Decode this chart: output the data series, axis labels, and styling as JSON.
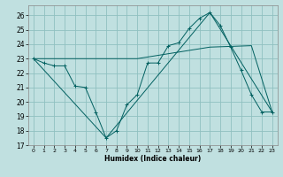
{
  "xlabel": "Humidex (Indice chaleur)",
  "bg_color": "#c0e0e0",
  "grid_color": "#90c0c0",
  "line_color": "#006060",
  "xlim": [
    -0.5,
    23.5
  ],
  "ylim": [
    17,
    26.7
  ],
  "yticks": [
    17,
    18,
    19,
    20,
    21,
    22,
    23,
    24,
    25,
    26
  ],
  "xticks": [
    0,
    1,
    2,
    3,
    4,
    5,
    6,
    7,
    8,
    9,
    10,
    11,
    12,
    13,
    14,
    15,
    16,
    17,
    18,
    19,
    20,
    21,
    22,
    23
  ],
  "line1_x": [
    0,
    1,
    2,
    3,
    4,
    5,
    6,
    7,
    8,
    9,
    10,
    11,
    12,
    13,
    14,
    15,
    16,
    17,
    18,
    19,
    20,
    21,
    22,
    23
  ],
  "line1_y": [
    23,
    22.7,
    22.5,
    22.5,
    21.1,
    21.0,
    19.3,
    17.5,
    18.0,
    19.8,
    20.5,
    22.7,
    22.7,
    23.9,
    24.1,
    25.1,
    25.8,
    26.2,
    25.3,
    23.8,
    22.2,
    20.5,
    19.3,
    19.3
  ],
  "line2_x": [
    0,
    7,
    17,
    23
  ],
  "line2_y": [
    23,
    17.5,
    26.2,
    19.3
  ],
  "line3_x": [
    0,
    10,
    17,
    21,
    23
  ],
  "line3_y": [
    23,
    23.0,
    23.8,
    23.9,
    19.3
  ]
}
